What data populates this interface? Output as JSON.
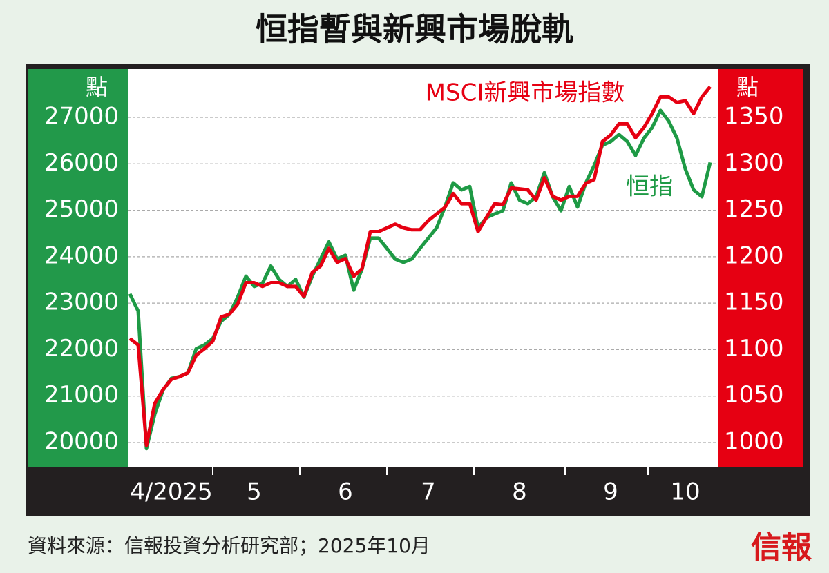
{
  "chart_data": {
    "type": "line",
    "title": "恒指暫與新興市場脫軌",
    "source": "資料來源：信報投資分析研究部；2025年10月",
    "logo": "信報",
    "y_unit": "點",
    "y2_unit": "點",
    "categories": [
      null,
      null,
      null,
      null,
      null,
      "4/2025",
      null,
      null,
      null,
      null,
      null,
      null,
      null,
      null,
      null,
      "5",
      null,
      null,
      null,
      null,
      null,
      null,
      null,
      null,
      null,
      null,
      "6",
      null,
      null,
      null,
      null,
      null,
      null,
      null,
      null,
      null,
      "7",
      null,
      null,
      null,
      null,
      null,
      null,
      null,
      null,
      null,
      null,
      "8",
      null,
      null,
      null,
      null,
      null,
      null,
      null,
      null,
      null,
      null,
      "9",
      null,
      null,
      null,
      null,
      null,
      null,
      null,
      null,
      "10",
      null,
      null,
      null
    ],
    "series": [
      {
        "name": "恒指",
        "color": "#1e9a45",
        "axis": "y",
        "values": [
          23200,
          22830,
          19870,
          20610,
          21130,
          21380,
          21420,
          21500,
          22020,
          22100,
          22240,
          22610,
          22760,
          23130,
          23580,
          23360,
          23430,
          23800,
          23510,
          23360,
          23510,
          23130,
          23580,
          23950,
          24320,
          23950,
          24030,
          23280,
          23730,
          24400,
          24400,
          24180,
          23950,
          23880,
          23950,
          24180,
          24400,
          24620,
          25070,
          25590,
          25440,
          25510,
          24620,
          24840,
          24920,
          24990,
          25590,
          25220,
          25140,
          25290,
          25810,
          25290,
          24990,
          25510,
          25070,
          25590,
          25960,
          26400,
          26480,
          26630,
          26480,
          26180,
          26550,
          26780,
          27150,
          26920,
          26550,
          25890,
          25440,
          25290,
          26030
        ]
      },
      {
        "name": "MSCI新興市場指數",
        "color": "#e60012",
        "axis": "y2",
        "values": [
          1112,
          1105,
          997,
          1042,
          1057,
          1068,
          1071,
          1075,
          1094,
          1101,
          1109,
          1135,
          1138,
          1149,
          1172,
          1172,
          1168,
          1172,
          1172,
          1168,
          1168,
          1157,
          1183,
          1190,
          1209,
          1194,
          1198,
          1179,
          1187,
          1227,
          1227,
          1231,
          1235,
          1231,
          1229,
          1229,
          1239,
          1246,
          1253,
          1268,
          1257,
          1257,
          1227,
          1242,
          1257,
          1256,
          1274,
          1273,
          1272,
          1261,
          1285,
          1265,
          1261,
          1265,
          1265,
          1279,
          1283,
          1324,
          1331,
          1343,
          1343,
          1328,
          1339,
          1354,
          1372,
          1372,
          1366,
          1368,
          1354,
          1372,
          1383
        ]
      }
    ],
    "ylim": [
      19480,
      28040
    ],
    "yticks": [
      20000,
      21000,
      22000,
      23000,
      24000,
      25000,
      26000,
      27000
    ],
    "y2lim": [
      974,
      1402
    ],
    "y2ticks": [
      1000,
      1050,
      1100,
      1150,
      1200,
      1250,
      1300,
      1350
    ],
    "grid": true
  }
}
